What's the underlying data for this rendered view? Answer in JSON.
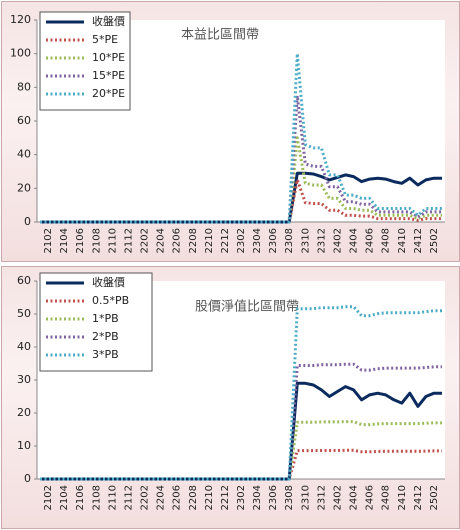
{
  "chart_data": [
    {
      "type": "line",
      "title": "本益比區間帶",
      "categories": [
        null,
        "2102",
        null,
        "2104",
        null,
        "2106",
        null,
        "2108",
        null,
        "2110",
        null,
        "2112",
        null,
        "2202",
        null,
        "2204",
        null,
        "2206",
        null,
        "2208",
        null,
        "2210",
        null,
        "2212",
        null,
        "2302",
        null,
        "2304",
        null,
        "2306",
        null,
        "2308",
        null,
        "2310",
        null,
        "2312",
        null,
        "2402",
        null,
        "2404",
        null,
        "2406",
        null,
        "2408",
        null,
        "2410",
        null,
        "2412",
        null,
        "2502",
        null
      ],
      "series": [
        {
          "name": "收盤價",
          "color": "#0b2a5e",
          "style": "solid",
          "values": [
            0,
            0,
            0,
            0,
            0,
            0,
            0,
            0,
            0,
            0,
            0,
            0,
            0,
            0,
            0,
            0,
            0,
            0,
            0,
            0,
            0,
            0,
            0,
            0,
            0,
            0,
            0,
            0,
            0,
            0,
            0,
            0,
            29,
            29,
            28.5,
            27,
            25,
            26.5,
            28,
            27,
            24,
            25.5,
            26,
            25.5,
            24,
            23,
            26,
            22,
            25,
            26,
            26
          ]
        },
        {
          "name": "5*PE",
          "color": "#c0504d",
          "style": "dotted",
          "values": [
            0,
            0,
            0,
            0,
            0,
            0,
            0,
            0,
            0,
            0,
            0,
            0,
            0,
            0,
            0,
            0,
            0,
            0,
            0,
            0,
            0,
            0,
            0,
            0,
            0,
            0,
            0,
            0,
            0,
            0,
            0,
            0,
            25,
            11.5,
            11,
            11,
            7,
            7,
            4,
            4,
            3.5,
            3.5,
            2,
            2,
            2,
            2,
            2,
            1,
            2,
            2,
            2
          ]
        },
        {
          "name": "10*PE",
          "color": "#9bbb59",
          "style": "dotted",
          "values": [
            0,
            0,
            0,
            0,
            0,
            0,
            0,
            0,
            0,
            0,
            0,
            0,
            0,
            0,
            0,
            0,
            0,
            0,
            0,
            0,
            0,
            0,
            0,
            0,
            0,
            0,
            0,
            0,
            0,
            0,
            0,
            0,
            50,
            23,
            22,
            22,
            14,
            14,
            8,
            8,
            7,
            7,
            4,
            4,
            4,
            4,
            4,
            2,
            4,
            4,
            4
          ]
        },
        {
          "name": "15*PE",
          "color": "#8064a2",
          "style": "dotted",
          "values": [
            0,
            0,
            0,
            0,
            0,
            0,
            0,
            0,
            0,
            0,
            0,
            0,
            0,
            0,
            0,
            0,
            0,
            0,
            0,
            0,
            0,
            0,
            0,
            0,
            0,
            0,
            0,
            0,
            0,
            0,
            0,
            0,
            75,
            34.5,
            33,
            33,
            21,
            21,
            12,
            12,
            10.5,
            10.5,
            6,
            6,
            6,
            6,
            6,
            3,
            6,
            6,
            6
          ]
        },
        {
          "name": "20*PE",
          "color": "#4bacc6",
          "style": "dotted",
          "values": [
            0,
            0,
            0,
            0,
            0,
            0,
            0,
            0,
            0,
            0,
            0,
            0,
            0,
            0,
            0,
            0,
            0,
            0,
            0,
            0,
            0,
            0,
            0,
            0,
            0,
            0,
            0,
            0,
            0,
            0,
            0,
            0,
            100,
            46,
            44,
            44,
            28,
            28,
            16,
            16,
            14,
            14,
            8,
            8,
            8,
            8,
            8,
            4,
            8,
            8,
            8
          ]
        }
      ],
      "ylim": [
        0,
        120
      ],
      "yticks": [
        0,
        20,
        40,
        60,
        80,
        100,
        120
      ],
      "legend": "upper left"
    },
    {
      "type": "line",
      "title": "股價淨值比區間帶",
      "categories": [
        null,
        "2102",
        null,
        "2104",
        null,
        "2106",
        null,
        "2108",
        null,
        "2110",
        null,
        "2112",
        null,
        "2202",
        null,
        "2204",
        null,
        "2206",
        null,
        "2208",
        null,
        "2210",
        null,
        "2212",
        null,
        "2302",
        null,
        "2304",
        null,
        "2306",
        null,
        "2308",
        null,
        "2310",
        null,
        "2312",
        null,
        "2402",
        null,
        "2404",
        null,
        "2406",
        null,
        "2408",
        null,
        "2410",
        null,
        "2412",
        null,
        "2502",
        null
      ],
      "series": [
        {
          "name": "收盤價",
          "color": "#0b2a5e",
          "style": "solid",
          "values": [
            0,
            0,
            0,
            0,
            0,
            0,
            0,
            0,
            0,
            0,
            0,
            0,
            0,
            0,
            0,
            0,
            0,
            0,
            0,
            0,
            0,
            0,
            0,
            0,
            0,
            0,
            0,
            0,
            0,
            0,
            0,
            0,
            29,
            29,
            28.5,
            27,
            25,
            26.5,
            28,
            27,
            24,
            25.5,
            26,
            25.5,
            24,
            23,
            26,
            22,
            25,
            26,
            26
          ]
        },
        {
          "name": "0.5*PB",
          "color": "#c0504d",
          "style": "dotted",
          "values": [
            0,
            0,
            0,
            0,
            0,
            0,
            0,
            0,
            0,
            0,
            0,
            0,
            0,
            0,
            0,
            0,
            0,
            0,
            0,
            0,
            0,
            0,
            0,
            0,
            0,
            0,
            0,
            0,
            0,
            0,
            0,
            0,
            8.6,
            8.6,
            8.6,
            8.65,
            8.65,
            8.65,
            8.7,
            8.7,
            8.25,
            8.25,
            8.35,
            8.4,
            8.4,
            8.4,
            8.4,
            8.4,
            8.45,
            8.5,
            8.5
          ]
        },
        {
          "name": "1*PB",
          "color": "#9bbb59",
          "style": "dotted",
          "values": [
            0,
            0,
            0,
            0,
            0,
            0,
            0,
            0,
            0,
            0,
            0,
            0,
            0,
            0,
            0,
            0,
            0,
            0,
            0,
            0,
            0,
            0,
            0,
            0,
            0,
            0,
            0,
            0,
            0,
            0,
            0,
            0,
            17.2,
            17.2,
            17.2,
            17.3,
            17.3,
            17.3,
            17.4,
            17.4,
            16.5,
            16.5,
            16.7,
            16.8,
            16.8,
            16.8,
            16.8,
            16.8,
            16.9,
            17,
            17
          ]
        },
        {
          "name": "2*PB",
          "color": "#8064a2",
          "style": "dotted",
          "values": [
            0,
            0,
            0,
            0,
            0,
            0,
            0,
            0,
            0,
            0,
            0,
            0,
            0,
            0,
            0,
            0,
            0,
            0,
            0,
            0,
            0,
            0,
            0,
            0,
            0,
            0,
            0,
            0,
            0,
            0,
            0,
            0,
            34.4,
            34.4,
            34.4,
            34.6,
            34.6,
            34.6,
            34.8,
            34.8,
            33,
            33,
            33.4,
            33.6,
            33.6,
            33.6,
            33.6,
            33.6,
            33.8,
            34,
            34
          ]
        },
        {
          "name": "3*PB",
          "color": "#4bacc6",
          "style": "dotted",
          "values": [
            0,
            0,
            0,
            0,
            0,
            0,
            0,
            0,
            0,
            0,
            0,
            0,
            0,
            0,
            0,
            0,
            0,
            0,
            0,
            0,
            0,
            0,
            0,
            0,
            0,
            0,
            0,
            0,
            0,
            0,
            0,
            0,
            51.6,
            51.6,
            51.6,
            51.9,
            51.9,
            51.9,
            52.2,
            52.2,
            49.5,
            49.5,
            50.1,
            50.4,
            50.4,
            50.4,
            50.4,
            50.4,
            50.7,
            51,
            51
          ]
        }
      ],
      "ylim": [
        0,
        60
      ],
      "yticks": [
        0,
        10,
        20,
        30,
        40,
        50,
        60
      ],
      "legend": "upper left"
    }
  ]
}
